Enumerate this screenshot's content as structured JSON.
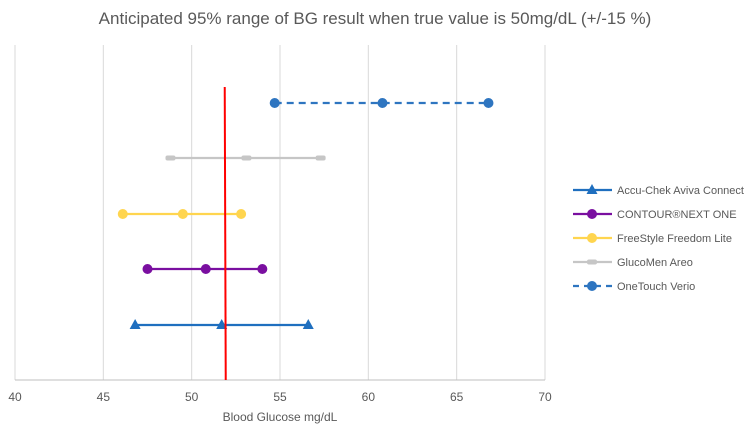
{
  "chart_data": {
    "type": "line",
    "title": "Anticipated  95% range of BG result when true value is 50mg/dL (+/-15 %)",
    "xlabel": "Blood Glucose mg/dL",
    "ylabel": "",
    "xlim": [
      40,
      70
    ],
    "xticks": [
      "40",
      "45",
      "50",
      "55",
      "60",
      "65",
      "70"
    ],
    "grid": "vertical",
    "legend_position": "right",
    "reference_line": {
      "x": 51.9,
      "color": "#ff0000"
    },
    "series": [
      {
        "name": "Accu-Chek Aviva Connect",
        "color": "#1f6fbf",
        "marker": "triangle",
        "dash": false,
        "x": [
          46.8,
          51.7,
          56.6
        ]
      },
      {
        "name": "CONTOUR®NEXT ONE",
        "color": "#7a0fa0",
        "marker": "circle",
        "dash": false,
        "x": [
          47.5,
          50.8,
          54.0
        ]
      },
      {
        "name": "FreeStyle Freedom Lite",
        "color": "#ffd54f",
        "marker": "circle",
        "dash": false,
        "x": [
          46.1,
          49.5,
          52.8
        ]
      },
      {
        "name": "GlucoMen Areo",
        "color": "#c6c6c6",
        "marker": "dash",
        "dash": false,
        "x": [
          48.8,
          53.1,
          57.3
        ]
      },
      {
        "name": "OneTouch Verio",
        "color": "#2e75c0",
        "marker": "circle",
        "dash": true,
        "x": [
          54.7,
          60.8,
          66.8
        ]
      }
    ]
  }
}
